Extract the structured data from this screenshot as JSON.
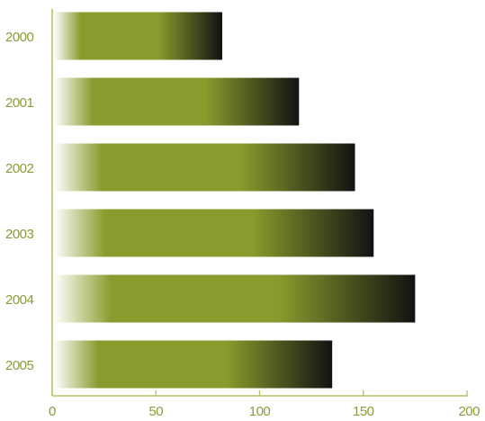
{
  "chart_data": {
    "type": "bar",
    "orientation": "horizontal",
    "title": "",
    "xlabel": "",
    "ylabel": "",
    "categories": [
      "2000",
      "2001",
      "2002",
      "2003",
      "2004",
      "2005"
    ],
    "values": [
      82,
      119,
      146,
      155,
      175,
      135
    ],
    "xlim": [
      0,
      200
    ],
    "xticks": [
      "0",
      "50",
      "100",
      "150",
      "200"
    ],
    "grid": false,
    "legend": "none",
    "colors": {
      "bar_fade_start": "#ffffff",
      "bar_main": "#8a9a2c",
      "bar_end": "#121212",
      "axis": "#b8c46a",
      "tick_label": "#8c9a3a"
    }
  }
}
